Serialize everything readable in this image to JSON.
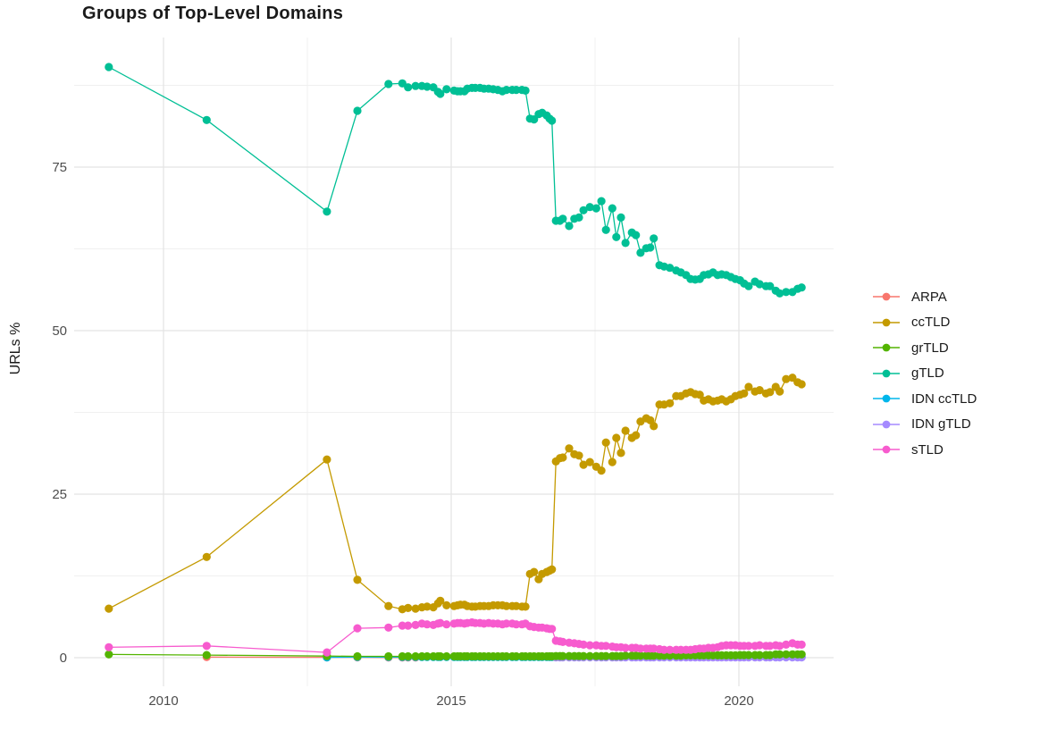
{
  "chart_data": {
    "type": "line",
    "title": "Groups of Top-Level Domains",
    "xlabel": "",
    "ylabel": "URLs %",
    "grid": true,
    "legend_position": "right",
    "x_axis": {
      "tick_labels": [
        "2010",
        "2015",
        "2020"
      ],
      "major_breaks": [
        2010,
        2015,
        2020
      ],
      "minor_breaks": [
        2012.5,
        2017.5
      ],
      "range": [
        2008.45,
        2021.65
      ]
    },
    "y_axis": {
      "tick_labels": [
        "0",
        "25",
        "50",
        "75"
      ],
      "major_breaks": [
        0,
        25,
        50,
        75
      ],
      "minor_breaks": [
        12.5,
        37.5,
        62.5,
        87.5
      ],
      "range": [
        -4.6,
        94.8
      ]
    },
    "x_years": [
      2009.05,
      2010.75,
      2012.84,
      2013.37,
      2013.91,
      2014.15,
      2014.25,
      2014.38,
      2014.49,
      2014.58,
      2014.69,
      2014.77,
      2014.81,
      2014.92,
      2015.05,
      2015.11,
      2015.16,
      2015.23,
      2015.28,
      2015.36,
      2015.42,
      2015.5,
      2015.57,
      2015.65,
      2015.73,
      2015.81,
      2015.89,
      2015.96,
      2016.06,
      2016.13,
      2016.23,
      2016.29,
      2016.37,
      2016.44,
      2016.52,
      2016.58,
      2016.66,
      2016.71,
      2016.75,
      2016.82,
      2016.89,
      2016.94,
      2017.05,
      2017.14,
      2017.22,
      2017.3,
      2017.41,
      2017.52,
      2017.61,
      2017.69,
      2017.8,
      2017.87,
      2017.95,
      2018.03,
      2018.14,
      2018.21,
      2018.29,
      2018.39,
      2018.46,
      2018.52,
      2018.62,
      2018.7,
      2018.8,
      2018.91,
      2018.99,
      2019.08,
      2019.16,
      2019.24,
      2019.32,
      2019.39,
      2019.47,
      2019.55,
      2019.63,
      2019.7,
      2019.78,
      2019.86,
      2019.94,
      2020.02,
      2020.09,
      2020.17,
      2020.28,
      2020.36,
      2020.47,
      2020.54,
      2020.64,
      2020.71,
      2020.82,
      2020.93,
      2021.02,
      2021.09
    ],
    "series": [
      {
        "name": "ARPA",
        "color": "#F8766D",
        "values": [
          null,
          0.1,
          0.05,
          0.05,
          0.03,
          0.03,
          0.03,
          0.03,
          null,
          null,
          null,
          null,
          null,
          null,
          null,
          null,
          null,
          null,
          null,
          null,
          null,
          null,
          null,
          null,
          null,
          null,
          null,
          null,
          null,
          null,
          null,
          null,
          null,
          null,
          null,
          null,
          null,
          null,
          null,
          null,
          null,
          null,
          null,
          null,
          null,
          null,
          null,
          null,
          null,
          null,
          null,
          null,
          null,
          null,
          null,
          null,
          null,
          null,
          null,
          null,
          null,
          null,
          null,
          null,
          null,
          null,
          null,
          null,
          null,
          null,
          null,
          null,
          null,
          null,
          null,
          null,
          null,
          null,
          null,
          null,
          null,
          null,
          null,
          null,
          null,
          null,
          null,
          null,
          null,
          null
        ]
      },
      {
        "name": "ccTLD",
        "color": "#C49A00",
        "values": [
          7.5,
          15.4,
          30.3,
          11.9,
          7.9,
          7.4,
          7.6,
          7.5,
          7.7,
          7.8,
          7.7,
          8.3,
          8.7,
          8.0,
          7.9,
          8.0,
          8.1,
          8.1,
          7.9,
          7.8,
          7.8,
          7.9,
          7.9,
          7.9,
          8.0,
          8.0,
          8.0,
          7.9,
          7.9,
          7.9,
          7.8,
          7.8,
          12.8,
          13.1,
          12.0,
          12.8,
          13.1,
          13.3,
          13.5,
          30.0,
          30.5,
          30.6,
          32.0,
          31.1,
          30.9,
          29.5,
          29.9,
          29.2,
          28.6,
          32.9,
          29.9,
          33.6,
          31.3,
          34.7,
          33.6,
          34.0,
          36.1,
          36.6,
          36.3,
          35.4,
          38.7,
          38.7,
          38.9,
          40.0,
          40.0,
          40.4,
          40.6,
          40.3,
          40.2,
          39.3,
          39.5,
          39.2,
          39.3,
          39.5,
          39.2,
          39.5,
          40.0,
          40.2,
          40.4,
          41.4,
          40.7,
          40.9,
          40.4,
          40.6,
          41.4,
          40.7,
          42.6,
          42.8,
          42.1,
          41.8
        ]
      },
      {
        "name": "grTLD",
        "color": "#53B400",
        "values": [
          0.5,
          0.4,
          0.25,
          0.2,
          0.2,
          0.2,
          0.2,
          0.2,
          0.2,
          0.2,
          0.2,
          0.2,
          0.2,
          0.2,
          0.2,
          0.2,
          0.2,
          0.2,
          0.2,
          0.2,
          0.2,
          0.2,
          0.2,
          0.2,
          0.2,
          0.2,
          0.2,
          0.2,
          0.2,
          0.2,
          0.2,
          0.2,
          0.2,
          0.2,
          0.2,
          0.2,
          0.2,
          0.2,
          0.2,
          0.25,
          0.25,
          0.25,
          0.25,
          0.25,
          0.25,
          0.25,
          0.25,
          0.25,
          0.25,
          0.25,
          0.25,
          0.25,
          0.25,
          0.3,
          0.3,
          0.3,
          0.3,
          0.3,
          0.3,
          0.3,
          0.3,
          0.3,
          0.3,
          0.3,
          0.3,
          0.35,
          0.35,
          0.35,
          0.35,
          0.35,
          0.35,
          0.35,
          0.35,
          0.35,
          0.35,
          0.35,
          0.35,
          0.4,
          0.4,
          0.4,
          0.4,
          0.4,
          0.4,
          0.4,
          0.5,
          0.5,
          0.5,
          0.5,
          0.5,
          0.5
        ]
      },
      {
        "name": "gTLD",
        "color": "#00BF95",
        "values": [
          90.3,
          82.2,
          68.2,
          83.6,
          87.7,
          87.8,
          87.2,
          87.4,
          87.4,
          87.3,
          87.2,
          86.5,
          86.2,
          86.9,
          86.7,
          86.6,
          86.6,
          86.6,
          87.0,
          87.1,
          87.1,
          87.1,
          87.0,
          87.0,
          86.9,
          86.8,
          86.6,
          86.8,
          86.8,
          86.8,
          86.8,
          86.7,
          82.4,
          82.3,
          83.1,
          83.3,
          82.9,
          82.4,
          82.1,
          66.8,
          66.8,
          67.1,
          66.0,
          67.1,
          67.3,
          68.4,
          68.9,
          68.7,
          69.8,
          65.4,
          68.7,
          64.3,
          67.3,
          63.4,
          65.0,
          64.6,
          61.9,
          62.6,
          62.7,
          64.1,
          60.0,
          59.8,
          59.6,
          59.2,
          58.9,
          58.5,
          57.9,
          57.8,
          57.9,
          58.5,
          58.6,
          58.9,
          58.5,
          58.6,
          58.5,
          58.2,
          57.9,
          57.7,
          57.2,
          56.8,
          57.5,
          57.1,
          56.8,
          56.8,
          56.1,
          55.7,
          55.9,
          55.9,
          56.4,
          56.6
        ]
      },
      {
        "name": "IDN ccTLD",
        "color": "#00B6EB",
        "values": [
          null,
          null,
          0.05,
          0.1,
          0.1,
          0.1,
          0.1,
          0.1,
          0.1,
          0.1,
          0.1,
          0.1,
          0.1,
          0.1,
          0.1,
          0.1,
          0.1,
          0.1,
          0.1,
          0.1,
          0.1,
          0.1,
          0.1,
          0.1,
          0.1,
          0.1,
          0.1,
          0.1,
          0.1,
          0.1,
          0.1,
          0.1,
          0.1,
          0.1,
          0.1,
          0.1,
          0.1,
          0.1,
          0.1,
          0.1,
          0.1,
          0.1,
          0.1,
          0.1,
          0.1,
          0.1,
          0.1,
          0.1,
          0.1,
          0.1,
          0.1,
          0.1,
          0.1,
          0.1,
          0.1,
          0.1,
          0.1,
          0.1,
          0.1,
          0.1,
          0.1,
          0.1,
          0.1,
          0.1,
          0.1,
          0.1,
          0.1,
          0.1,
          0.1,
          0.1,
          0.1,
          0.1,
          0.1,
          0.1,
          0.1,
          0.1,
          0.1,
          0.1,
          0.1,
          0.1,
          0.1,
          0.1,
          0.1,
          0.1,
          0.1,
          0.1,
          0.1,
          0.1,
          0.1,
          0.1
        ]
      },
      {
        "name": "IDN gTLD",
        "color": "#A58AFF",
        "values": [
          null,
          null,
          null,
          null,
          null,
          null,
          null,
          null,
          null,
          null,
          null,
          null,
          null,
          null,
          null,
          null,
          null,
          null,
          null,
          null,
          null,
          null,
          null,
          null,
          null,
          null,
          null,
          null,
          null,
          null,
          null,
          null,
          null,
          null,
          null,
          null,
          null,
          null,
          null,
          0.05,
          0.05,
          0.05,
          0.05,
          0.05,
          0.05,
          0.05,
          0.05,
          0.05,
          0.05,
          0.05,
          0.05,
          0.05,
          0.05,
          0.05,
          0.05,
          0.05,
          0.05,
          0.05,
          0.05,
          0.05,
          0.05,
          0.05,
          0.05,
          0.05,
          0.05,
          0.05,
          0.05,
          0.05,
          0.05,
          0.05,
          0.05,
          0.05,
          0.05,
          0.05,
          0.05,
          0.05,
          0.05,
          0.05,
          0.05,
          0.05,
          0.05,
          0.05,
          0.05,
          0.05,
          0.05,
          0.05,
          0.05,
          0.05,
          0.05,
          0.05
        ]
      },
      {
        "name": "sTLD",
        "color": "#F75BCE",
        "values": [
          1.6,
          1.8,
          0.8,
          4.5,
          4.6,
          4.9,
          4.9,
          5.0,
          5.2,
          5.1,
          5.0,
          5.2,
          5.3,
          5.1,
          5.2,
          5.3,
          5.3,
          5.2,
          5.3,
          5.4,
          5.3,
          5.3,
          5.2,
          5.3,
          5.2,
          5.2,
          5.1,
          5.2,
          5.2,
          5.1,
          5.1,
          5.2,
          4.8,
          4.7,
          4.6,
          4.6,
          4.5,
          4.4,
          4.4,
          2.6,
          2.5,
          2.4,
          2.3,
          2.2,
          2.1,
          2.0,
          1.9,
          1.9,
          1.8,
          1.8,
          1.7,
          1.6,
          1.6,
          1.5,
          1.5,
          1.5,
          1.4,
          1.4,
          1.4,
          1.4,
          1.3,
          1.2,
          1.2,
          1.2,
          1.2,
          1.2,
          1.2,
          1.3,
          1.4,
          1.4,
          1.5,
          1.5,
          1.6,
          1.8,
          1.9,
          1.9,
          1.9,
          1.8,
          1.8,
          1.8,
          1.8,
          1.9,
          1.8,
          1.8,
          1.9,
          1.8,
          2.0,
          2.2,
          2.0,
          2.0
        ]
      }
    ],
    "legend": {
      "items": [
        "ARPA",
        "ccTLD",
        "grTLD",
        "gTLD",
        "IDN ccTLD",
        "IDN gTLD",
        "sTLD"
      ]
    },
    "colors": {
      "grid_major": "#E4E4E4",
      "grid_minor": "#F0F0F0",
      "axis_text": "#4d4d4d",
      "title_text": "#1a1a1a"
    }
  }
}
